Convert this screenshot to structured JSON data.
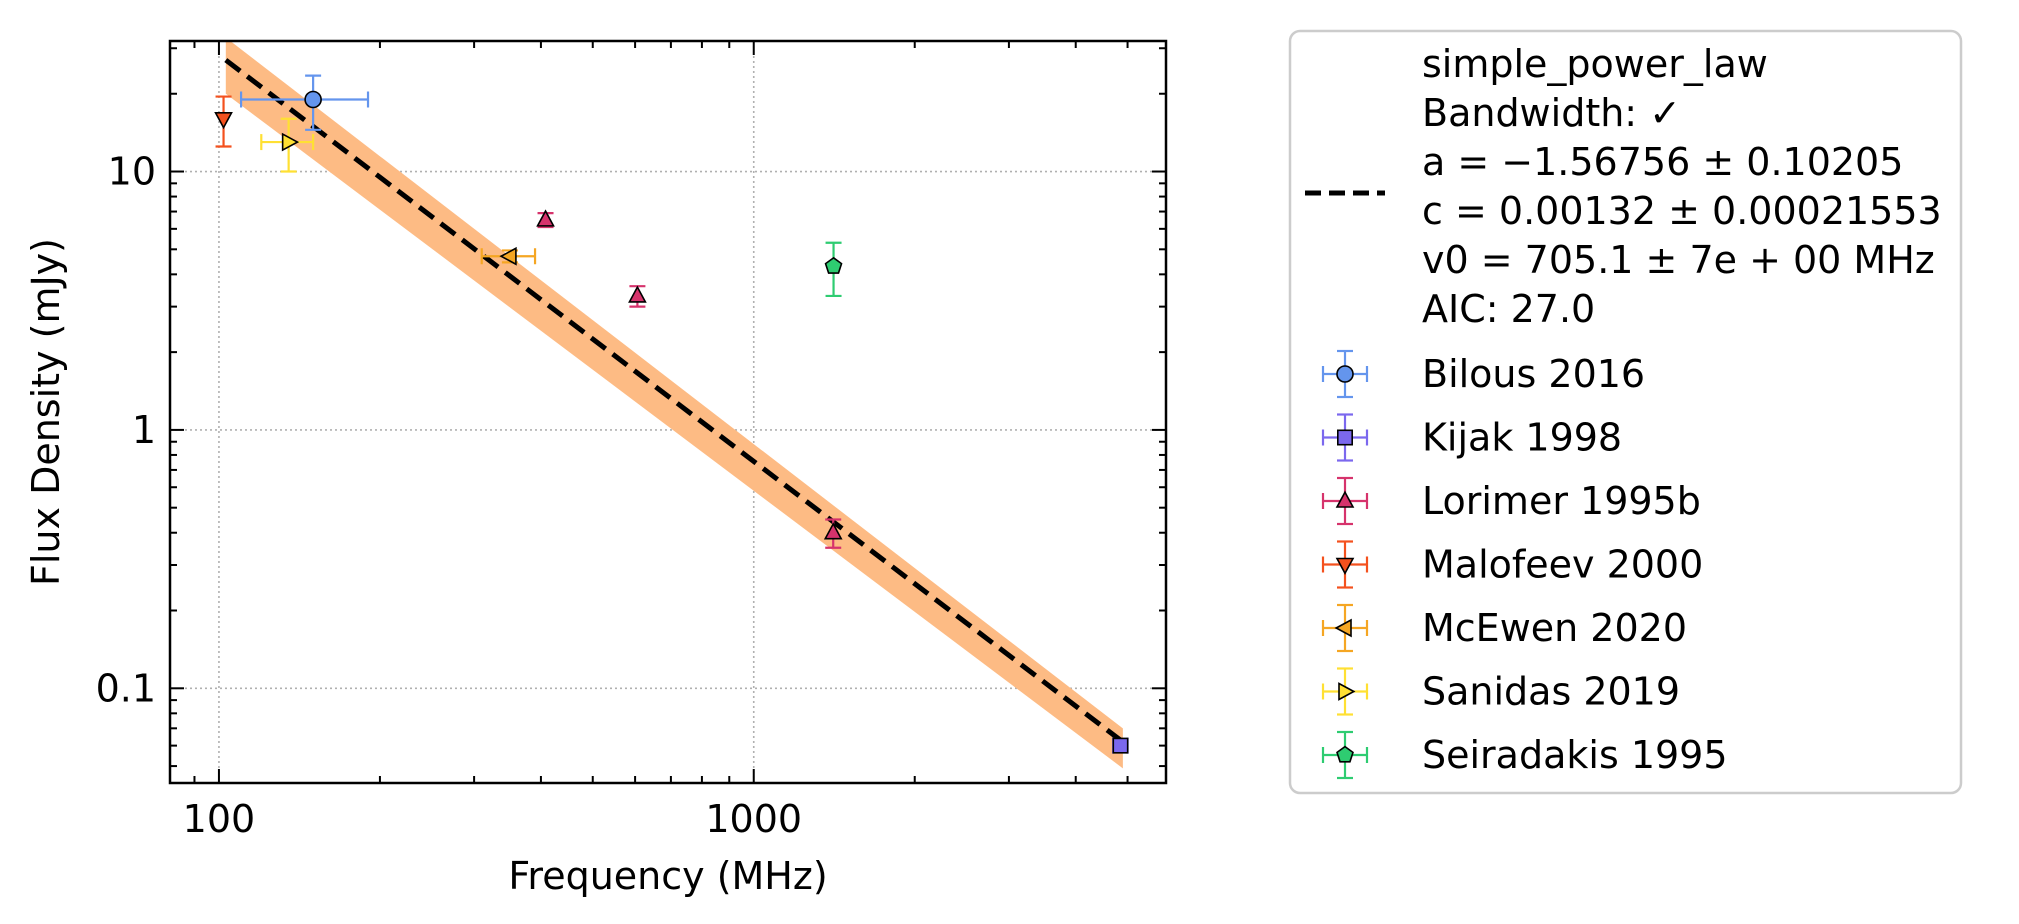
{
  "chart_data": {
    "type": "scatter",
    "xlabel": "Frequency (MHz)",
    "ylabel": "Flux Density (mJy)",
    "xscale": "log",
    "yscale": "log",
    "xlim": [
      81,
      5900
    ],
    "ylim": [
      0.043,
      32
    ],
    "grid": true,
    "legend_placement": "outside-right",
    "xticks": [
      {
        "value": 100,
        "label": "100"
      },
      {
        "value": 1000,
        "label": "1000"
      }
    ],
    "yticks": [
      {
        "value": 0.1,
        "label": "0.1"
      },
      {
        "value": 1,
        "label": "1"
      },
      {
        "value": 10,
        "label": "10"
      }
    ],
    "fit": {
      "name": "simple_power_law",
      "legend_lines": [
        "simple_power_law",
        "Bandwidth: ✓",
        "a = −1.56756 ± 0.10205",
        "c = 0.00132 ± 0.00021553",
        "v0 = 705.1 ± 7e + 00 MHz",
        "AIC: 27.0"
      ],
      "x_range": [
        103,
        4900
      ],
      "line": [
        {
          "x": 103,
          "y": 27.0
        },
        {
          "x": 4900,
          "y": 0.062
        }
      ],
      "band_upper": [
        {
          "x": 103,
          "y": 33.0
        },
        {
          "x": 4900,
          "y": 0.07
        }
      ],
      "band_lower": [
        {
          "x": 103,
          "y": 20.0
        },
        {
          "x": 4900,
          "y": 0.049
        }
      ],
      "line_color": "#000000",
      "band_color": "#fdbb84"
    },
    "series": [
      {
        "name": "Bilous 2016",
        "marker": "circle",
        "color": "#6495ed",
        "points": [
          {
            "x": 150,
            "y": 19.0,
            "xerr": [
              40,
              40
            ],
            "yerr": [
              4.5,
              4.5
            ]
          }
        ]
      },
      {
        "name": "Kijak 1998",
        "marker": "square",
        "color": "#7b68ee",
        "points": [
          {
            "x": 4850,
            "y": 0.06,
            "xerr": [
              150,
              150
            ],
            "yerr": [
              0.003,
              0.003
            ]
          }
        ]
      },
      {
        "name": "Lorimer 1995b",
        "marker": "triangle-up",
        "color": "#d6336c",
        "points": [
          {
            "x": 408,
            "y": 6.5,
            "xerr": [
              0,
              0
            ],
            "yerr": [
              0.4,
              0.4
            ]
          },
          {
            "x": 606,
            "y": 3.3,
            "xerr": [
              0,
              0
            ],
            "yerr": [
              0.3,
              0.3
            ]
          },
          {
            "x": 1408,
            "y": 0.4,
            "xerr": [
              0,
              0
            ],
            "yerr": [
              0.05,
              0.05
            ]
          }
        ]
      },
      {
        "name": "Malofeev 2000",
        "marker": "triangle-down",
        "color": "#f4511e",
        "points": [
          {
            "x": 102,
            "y": 16.0,
            "xerr": [
              0,
              0
            ],
            "yerr": [
              3.5,
              3.5
            ]
          }
        ]
      },
      {
        "name": "McEwen 2020",
        "marker": "triangle-left",
        "color": "#f5a623",
        "points": [
          {
            "x": 350,
            "y": 4.7,
            "xerr": [
              40,
              40
            ],
            "yerr": [
              0.25,
              0.25
            ]
          }
        ]
      },
      {
        "name": "Sanidas 2019",
        "marker": "triangle-right",
        "color": "#ffe033",
        "points": [
          {
            "x": 135,
            "y": 13.0,
            "xerr": [
              15,
              15
            ],
            "yerr": [
              3.0,
              3.0
            ]
          }
        ]
      },
      {
        "name": "Seiradakis 1995",
        "marker": "pentagon",
        "color": "#2ecc71",
        "points": [
          {
            "x": 1410,
            "y": 4.3,
            "xerr": [
              0,
              0
            ],
            "yerr": [
              1.0,
              1.0
            ]
          }
        ]
      }
    ]
  }
}
